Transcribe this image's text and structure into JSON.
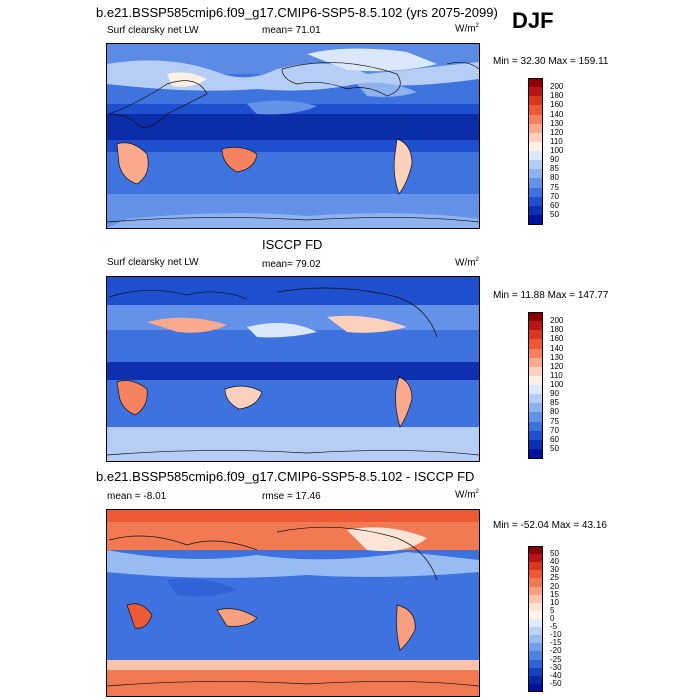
{
  "season": "DJF",
  "panels": [
    {
      "title": "b.e21.BSSP585cmip6.f09_g17.CMIP6-SSP5-8.5.102 (yrs 2075-2099)",
      "left_label": "Surf clearsky net LW",
      "mean_label": "mean=  71.01",
      "units": "W/m",
      "units_sup": "2",
      "minmax": "Min =  32.30 Max = 159.11",
      "colorbar": {
        "labels": [
          "200",
          "180",
          "160",
          "140",
          "130",
          "120",
          "110",
          "100",
          "90",
          "85",
          "80",
          "75",
          "70",
          "60",
          "50"
        ],
        "colors": [
          "#8b0000",
          "#b8141a",
          "#d9381f",
          "#ec5a35",
          "#f5825f",
          "#f8a98e",
          "#fbd0bd",
          "#fdf0e4",
          "#dbe7fb",
          "#b6cdf6",
          "#8eb1f0",
          "#6492e8",
          "#3d72df",
          "#1e4fcf",
          "#0d2fb0",
          "#00129a"
        ]
      }
    },
    {
      "title": "ISCCP FD",
      "left_label": "Surf clearsky net LW",
      "mean_label": "mean=  79.02",
      "units": "W/m",
      "units_sup": "2",
      "minmax": "Min =  11.88 Max = 147.77",
      "colorbar": {
        "labels": [
          "200",
          "180",
          "160",
          "140",
          "130",
          "120",
          "110",
          "100",
          "90",
          "85",
          "80",
          "75",
          "70",
          "60",
          "50"
        ],
        "colors": [
          "#8b0000",
          "#b8141a",
          "#d9381f",
          "#ec5a35",
          "#f5825f",
          "#f8a98e",
          "#fbd0bd",
          "#fdf0e4",
          "#dbe7fb",
          "#b6cdf6",
          "#8eb1f0",
          "#6492e8",
          "#3d72df",
          "#1e4fcf",
          "#0d2fb0",
          "#00129a"
        ]
      }
    },
    {
      "title": "b.e21.BSSP585cmip6.f09_g17.CMIP6-SSP5-8.5.102 - ISCCP FD",
      "left_label": "mean =  -8.01",
      "mean_label": "rmse =  17.46",
      "units": "W/m",
      "units_sup": "2",
      "minmax": "Min = -52.04 Max =  43.16",
      "colorbar": {
        "labels": [
          "50",
          "40",
          "30",
          "25",
          "20",
          "15",
          "10",
          "5",
          "0",
          "-5",
          "-10",
          "-15",
          "-20",
          "-25",
          "-30",
          "-40",
          "-50"
        ],
        "colors": [
          "#8b0000",
          "#b8141a",
          "#d9381f",
          "#ec5a35",
          "#f27a52",
          "#f7a07f",
          "#fac4ac",
          "#fde4d6",
          "#fdf3ea",
          "#e0ebfb",
          "#bcd3f7",
          "#98bbf2",
          "#729fea",
          "#4f83e2",
          "#2f63d6",
          "#1842bd",
          "#0a27a3",
          "#00129a"
        ]
      }
    }
  ]
}
